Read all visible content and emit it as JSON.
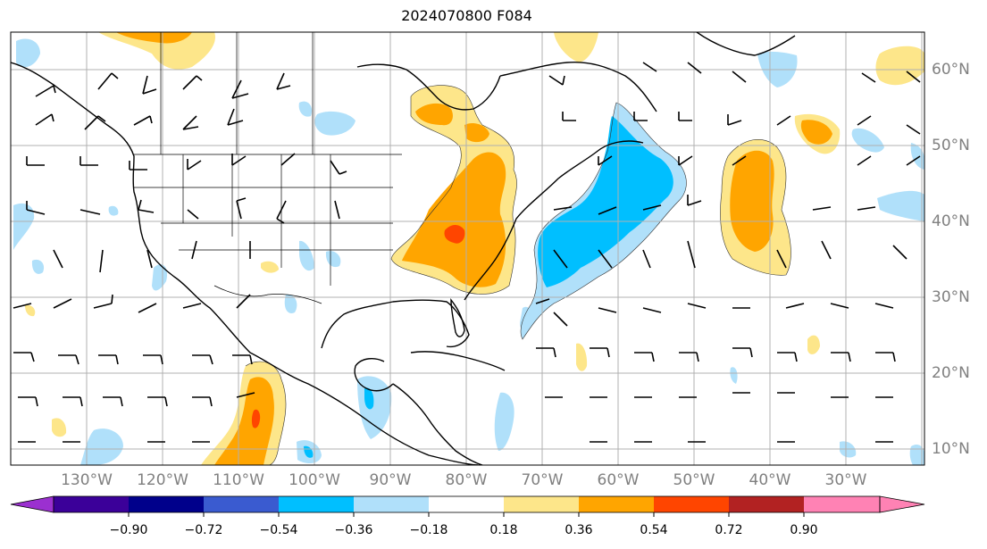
{
  "title": "2024070800 F084",
  "lon_labels": [
    "130°W",
    "120°W",
    "110°W",
    "100°W",
    "90°W",
    "80°W",
    "70°W",
    "60°W",
    "50°W",
    "40°W",
    "30°W"
  ],
  "lat_labels": [
    "60°N",
    "50°N",
    "40°N",
    "30°N",
    "20°N",
    "10°N"
  ],
  "colorbar": {
    "ticks": [
      "−0.90",
      "−0.72",
      "−0.54",
      "−0.36",
      "−0.18",
      "0.18",
      "0.36",
      "0.54",
      "0.72",
      "0.90"
    ],
    "under_color": "#9b30d0",
    "over_color": "#ff82b4",
    "colors": [
      "#3b0099",
      "#00008b",
      "#3a5bd0",
      "#00bfff",
      "#b0e0fa",
      "#ffffff",
      "#fde68a",
      "#ffa500",
      "#ff4500",
      "#b22222"
    ]
  },
  "colors": {
    "light_blue": "#b0e0fa",
    "deep_sky_blue": "#00bfff",
    "light_yellow": "#fde68a",
    "orange": "#ffa500",
    "orange_red": "#ff4500",
    "grid": "#b0b0b0",
    "axis_label": "#808080"
  }
}
